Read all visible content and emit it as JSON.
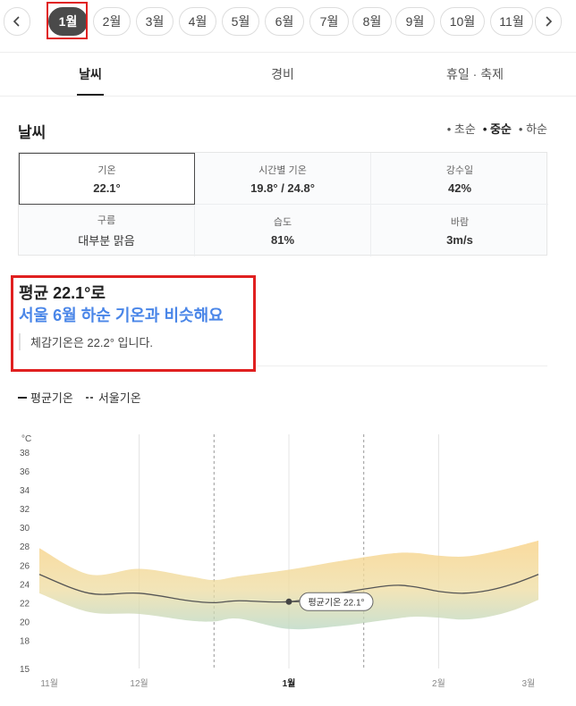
{
  "months": {
    "prev_icon": "chevron-left-icon",
    "next_icon": "chevron-right-icon",
    "items": [
      "1월",
      "2월",
      "3월",
      "4월",
      "5월",
      "6월",
      "7월",
      "8월",
      "9월",
      "10월",
      "11월"
    ],
    "active_index": 0
  },
  "tabs": [
    {
      "label": "날씨",
      "active": true
    },
    {
      "label": "경비",
      "active": false
    },
    {
      "label": "휴일 · 축제",
      "active": false
    }
  ],
  "weather": {
    "title": "날씨",
    "periods": [
      "• 초순",
      "• 중순",
      "• 하순"
    ],
    "active_period": 1,
    "stats": [
      {
        "label": "기온",
        "value": "22.1°"
      },
      {
        "label": "시간별 기온",
        "value": "19.8° / 24.8°"
      },
      {
        "label": "강수일",
        "value": "42%"
      },
      {
        "label": "구름",
        "value": "대부분 맑음"
      },
      {
        "label": "습도",
        "value": "81%"
      },
      {
        "label": "바람",
        "value": "3m/s"
      }
    ]
  },
  "summary": {
    "line1": "평균 22.1°로",
    "line2": "서울 6월 하순 기온과 비슷해요",
    "note": "체감기온은 22.2° 입니다."
  },
  "legend": {
    "avg": "평균기온",
    "seoul": "서울기온"
  },
  "colors": {
    "accent_blue": "#4a86e8",
    "highlight_red": "#e02020",
    "active_pill": "#4a4a4a"
  },
  "chart_data": {
    "type": "area",
    "unit": "°C",
    "ylim": [
      15,
      38
    ],
    "y_ticks": [
      15,
      18,
      20,
      22,
      24,
      26,
      28,
      30,
      32,
      34,
      36,
      38
    ],
    "x_ticks": [
      "11월",
      "12월",
      "1월",
      "2월",
      "3월"
    ],
    "active_x": "1월",
    "series": [
      {
        "name": "평균기온",
        "x": [
          0,
          0.1,
          0.2,
          0.3,
          0.35,
          0.4,
          0.5,
          0.6,
          0.7,
          0.75,
          0.8,
          0.85,
          0.9,
          0.95,
          1.0
        ],
        "values": [
          25.0,
          23.0,
          23.0,
          22.2,
          22.0,
          22.2,
          22.1,
          23.0,
          23.8,
          23.7,
          23.2,
          23.0,
          23.3,
          24.0,
          25.0
        ]
      }
    ],
    "band": {
      "upper": [
        27.8,
        25.0,
        25.6,
        24.8,
        24.4,
        24.8,
        25.5,
        26.4,
        27.2,
        27.3,
        27.0,
        26.9,
        27.3,
        27.9,
        28.6
      ],
      "lower": [
        23.0,
        21.0,
        20.8,
        20.1,
        20.0,
        20.3,
        19.2,
        19.5,
        20.2,
        20.5,
        20.4,
        20.2,
        20.5,
        21.2,
        22.3
      ]
    },
    "marker": {
      "x": 0.5,
      "value": 22.1,
      "label": "평균기온 22.1°"
    },
    "grid": "vertical"
  }
}
